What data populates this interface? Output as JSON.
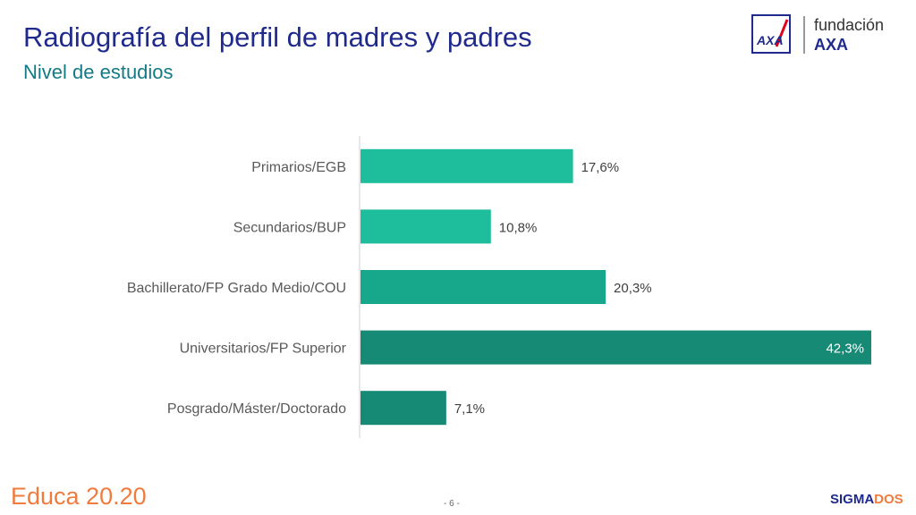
{
  "header": {
    "title": "Radiografía del perfil de madres y padres",
    "subtitle": "Nivel de estudios"
  },
  "logo": {
    "line1": "fundación",
    "line2": "AXA",
    "mark_text": "AXA"
  },
  "footer": {
    "brand": "Educa 20.20",
    "page": "- 6 -",
    "sigma_part1": "SIGMA",
    "sigma_part2": "DOS"
  },
  "chart_data": {
    "type": "bar",
    "orientation": "horizontal",
    "title": "",
    "xlabel": "",
    "ylabel": "",
    "categories": [
      "Primarios/EGB",
      "Secundarios/BUP",
      "Bachillerato/FP Grado Medio/COU",
      "Universitarios/FP Superior",
      "Posgrado/Máster/Doctorado"
    ],
    "values": [
      17.6,
      10.8,
      20.3,
      42.3,
      7.1
    ],
    "labels": [
      "17,6%",
      "10,8%",
      "20,3%",
      "42,3%",
      "7,1%"
    ],
    "colors": [
      "#1ebd9b",
      "#1ebd9b",
      "#17a78a",
      "#168a74",
      "#168a74"
    ],
    "xlim": [
      0,
      42.3
    ],
    "grid": false,
    "legend": "none"
  }
}
